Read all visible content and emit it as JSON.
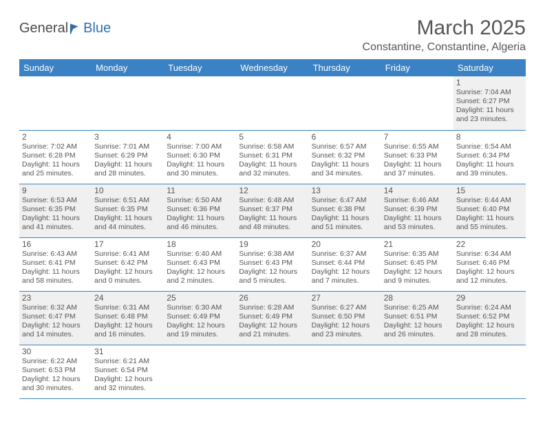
{
  "logo": {
    "part1": "General",
    "part2": "Blue"
  },
  "title": "March 2025",
  "location": "Constantine, Constantine, Algeria",
  "header_bg": "#3b82c4",
  "header_fg": "#ffffff",
  "row_alt_bg": "#f0f0f0",
  "border_color": "#3b82c4",
  "weekdays": [
    "Sunday",
    "Monday",
    "Tuesday",
    "Wednesday",
    "Thursday",
    "Friday",
    "Saturday"
  ],
  "weeks": [
    [
      null,
      null,
      null,
      null,
      null,
      null,
      {
        "n": "1",
        "sr": "Sunrise: 7:04 AM",
        "ss": "Sunset: 6:27 PM",
        "dl": "Daylight: 11 hours and 23 minutes."
      }
    ],
    [
      {
        "n": "2",
        "sr": "Sunrise: 7:02 AM",
        "ss": "Sunset: 6:28 PM",
        "dl": "Daylight: 11 hours and 25 minutes."
      },
      {
        "n": "3",
        "sr": "Sunrise: 7:01 AM",
        "ss": "Sunset: 6:29 PM",
        "dl": "Daylight: 11 hours and 28 minutes."
      },
      {
        "n": "4",
        "sr": "Sunrise: 7:00 AM",
        "ss": "Sunset: 6:30 PM",
        "dl": "Daylight: 11 hours and 30 minutes."
      },
      {
        "n": "5",
        "sr": "Sunrise: 6:58 AM",
        "ss": "Sunset: 6:31 PM",
        "dl": "Daylight: 11 hours and 32 minutes."
      },
      {
        "n": "6",
        "sr": "Sunrise: 6:57 AM",
        "ss": "Sunset: 6:32 PM",
        "dl": "Daylight: 11 hours and 34 minutes."
      },
      {
        "n": "7",
        "sr": "Sunrise: 6:55 AM",
        "ss": "Sunset: 6:33 PM",
        "dl": "Daylight: 11 hours and 37 minutes."
      },
      {
        "n": "8",
        "sr": "Sunrise: 6:54 AM",
        "ss": "Sunset: 6:34 PM",
        "dl": "Daylight: 11 hours and 39 minutes."
      }
    ],
    [
      {
        "n": "9",
        "sr": "Sunrise: 6:53 AM",
        "ss": "Sunset: 6:35 PM",
        "dl": "Daylight: 11 hours and 41 minutes."
      },
      {
        "n": "10",
        "sr": "Sunrise: 6:51 AM",
        "ss": "Sunset: 6:35 PM",
        "dl": "Daylight: 11 hours and 44 minutes."
      },
      {
        "n": "11",
        "sr": "Sunrise: 6:50 AM",
        "ss": "Sunset: 6:36 PM",
        "dl": "Daylight: 11 hours and 46 minutes."
      },
      {
        "n": "12",
        "sr": "Sunrise: 6:48 AM",
        "ss": "Sunset: 6:37 PM",
        "dl": "Daylight: 11 hours and 48 minutes."
      },
      {
        "n": "13",
        "sr": "Sunrise: 6:47 AM",
        "ss": "Sunset: 6:38 PM",
        "dl": "Daylight: 11 hours and 51 minutes."
      },
      {
        "n": "14",
        "sr": "Sunrise: 6:46 AM",
        "ss": "Sunset: 6:39 PM",
        "dl": "Daylight: 11 hours and 53 minutes."
      },
      {
        "n": "15",
        "sr": "Sunrise: 6:44 AM",
        "ss": "Sunset: 6:40 PM",
        "dl": "Daylight: 11 hours and 55 minutes."
      }
    ],
    [
      {
        "n": "16",
        "sr": "Sunrise: 6:43 AM",
        "ss": "Sunset: 6:41 PM",
        "dl": "Daylight: 11 hours and 58 minutes."
      },
      {
        "n": "17",
        "sr": "Sunrise: 6:41 AM",
        "ss": "Sunset: 6:42 PM",
        "dl": "Daylight: 12 hours and 0 minutes."
      },
      {
        "n": "18",
        "sr": "Sunrise: 6:40 AM",
        "ss": "Sunset: 6:43 PM",
        "dl": "Daylight: 12 hours and 2 minutes."
      },
      {
        "n": "19",
        "sr": "Sunrise: 6:38 AM",
        "ss": "Sunset: 6:43 PM",
        "dl": "Daylight: 12 hours and 5 minutes."
      },
      {
        "n": "20",
        "sr": "Sunrise: 6:37 AM",
        "ss": "Sunset: 6:44 PM",
        "dl": "Daylight: 12 hours and 7 minutes."
      },
      {
        "n": "21",
        "sr": "Sunrise: 6:35 AM",
        "ss": "Sunset: 6:45 PM",
        "dl": "Daylight: 12 hours and 9 minutes."
      },
      {
        "n": "22",
        "sr": "Sunrise: 6:34 AM",
        "ss": "Sunset: 6:46 PM",
        "dl": "Daylight: 12 hours and 12 minutes."
      }
    ],
    [
      {
        "n": "23",
        "sr": "Sunrise: 6:32 AM",
        "ss": "Sunset: 6:47 PM",
        "dl": "Daylight: 12 hours and 14 minutes."
      },
      {
        "n": "24",
        "sr": "Sunrise: 6:31 AM",
        "ss": "Sunset: 6:48 PM",
        "dl": "Daylight: 12 hours and 16 minutes."
      },
      {
        "n": "25",
        "sr": "Sunrise: 6:30 AM",
        "ss": "Sunset: 6:49 PM",
        "dl": "Daylight: 12 hours and 19 minutes."
      },
      {
        "n": "26",
        "sr": "Sunrise: 6:28 AM",
        "ss": "Sunset: 6:49 PM",
        "dl": "Daylight: 12 hours and 21 minutes."
      },
      {
        "n": "27",
        "sr": "Sunrise: 6:27 AM",
        "ss": "Sunset: 6:50 PM",
        "dl": "Daylight: 12 hours and 23 minutes."
      },
      {
        "n": "28",
        "sr": "Sunrise: 6:25 AM",
        "ss": "Sunset: 6:51 PM",
        "dl": "Daylight: 12 hours and 26 minutes."
      },
      {
        "n": "29",
        "sr": "Sunrise: 6:24 AM",
        "ss": "Sunset: 6:52 PM",
        "dl": "Daylight: 12 hours and 28 minutes."
      }
    ],
    [
      {
        "n": "30",
        "sr": "Sunrise: 6:22 AM",
        "ss": "Sunset: 6:53 PM",
        "dl": "Daylight: 12 hours and 30 minutes."
      },
      {
        "n": "31",
        "sr": "Sunrise: 6:21 AM",
        "ss": "Sunset: 6:54 PM",
        "dl": "Daylight: 12 hours and 32 minutes."
      },
      null,
      null,
      null,
      null,
      null
    ]
  ]
}
